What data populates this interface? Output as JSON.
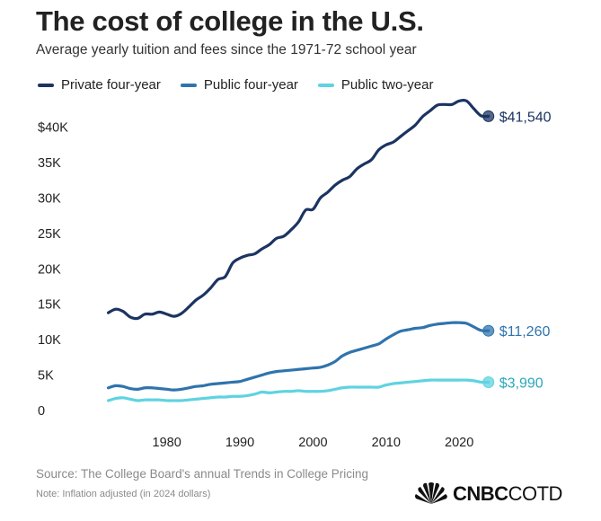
{
  "header": {
    "title": "The cost of college in the U.S.",
    "subtitle": "Average yearly tuition and fees since the 1971-72 school year"
  },
  "footer": {
    "source": "Source: The College Board's annual Trends in College Pricing",
    "note": "Note: Inflation adjusted (in 2024 dollars)",
    "logo_bold": "CNBC",
    "logo_light": "COTD"
  },
  "colors": {
    "private": "#1c3461",
    "public4": "#2f74ad",
    "public2": "#5fd3e0",
    "end_label_public2": "#2aa7b8"
  },
  "chart_data": {
    "type": "line",
    "x_ticks": [
      1980,
      1990,
      2000,
      2010,
      2020
    ],
    "y_ticks": [
      0,
      5000,
      10000,
      15000,
      20000,
      25000,
      30000,
      35000,
      40000
    ],
    "y_tick_labels": [
      "0",
      "5K",
      "10K",
      "15K",
      "20K",
      "25K",
      "30K",
      "35K",
      "$40K"
    ],
    "xlim": [
      1968,
      2026
    ],
    "ylim": [
      0,
      44000
    ],
    "grid": false,
    "legend_position": "top-left",
    "series": [
      {
        "name": "Private four-year",
        "key": "private",
        "end_label": "$41,540",
        "x": [
          1972,
          1973,
          1974,
          1975,
          1976,
          1977,
          1978,
          1979,
          1980,
          1981,
          1982,
          1983,
          1984,
          1985,
          1986,
          1987,
          1988,
          1989,
          1990,
          1991,
          1992,
          1993,
          1994,
          1995,
          1996,
          1997,
          1998,
          1999,
          2000,
          2001,
          2002,
          2003,
          2004,
          2005,
          2006,
          2007,
          2008,
          2009,
          2010,
          2011,
          2012,
          2013,
          2014,
          2015,
          2016,
          2017,
          2018,
          2019,
          2020,
          2021,
          2022,
          2023,
          2024
        ],
        "y": [
          13800,
          14300,
          14000,
          13200,
          13000,
          13600,
          13600,
          13900,
          13600,
          13300,
          13700,
          14600,
          15600,
          16300,
          17300,
          18500,
          18900,
          20800,
          21500,
          21900,
          22100,
          22800,
          23400,
          24300,
          24600,
          25500,
          26600,
          28300,
          28400,
          30000,
          30800,
          31800,
          32500,
          33000,
          34100,
          34800,
          35400,
          36800,
          37500,
          37900,
          38700,
          39500,
          40300,
          41500,
          42300,
          43100,
          43200,
          43200,
          43700,
          43700,
          42600,
          41600,
          41540
        ]
      },
      {
        "name": "Public four-year",
        "key": "public4",
        "end_label": "$11,260",
        "x": [
          1972,
          1973,
          1974,
          1975,
          1976,
          1977,
          1978,
          1979,
          1980,
          1981,
          1982,
          1983,
          1984,
          1985,
          1986,
          1987,
          1988,
          1989,
          1990,
          1991,
          1992,
          1993,
          1994,
          1995,
          1996,
          1997,
          1998,
          1999,
          2000,
          2001,
          2002,
          2003,
          2004,
          2005,
          2006,
          2007,
          2008,
          2009,
          2010,
          2011,
          2012,
          2013,
          2014,
          2015,
          2016,
          2017,
          2018,
          2019,
          2020,
          2021,
          2022,
          2023,
          2024
        ],
        "y": [
          3200,
          3500,
          3400,
          3100,
          3000,
          3200,
          3200,
          3100,
          3000,
          2900,
          3000,
          3200,
          3400,
          3500,
          3700,
          3800,
          3900,
          4000,
          4100,
          4400,
          4700,
          5000,
          5300,
          5500,
          5600,
          5700,
          5800,
          5900,
          6000,
          6100,
          6400,
          6900,
          7700,
          8200,
          8500,
          8800,
          9100,
          9400,
          10100,
          10700,
          11200,
          11400,
          11600,
          11700,
          12000,
          12200,
          12300,
          12400,
          12400,
          12300,
          11800,
          11300,
          11260
        ]
      },
      {
        "name": "Public two-year",
        "key": "public2",
        "end_label": "$3,990",
        "x": [
          1972,
          1973,
          1974,
          1975,
          1976,
          1977,
          1978,
          1979,
          1980,
          1981,
          1982,
          1983,
          1984,
          1985,
          1986,
          1987,
          1988,
          1989,
          1990,
          1991,
          1992,
          1993,
          1994,
          1995,
          1996,
          1997,
          1998,
          1999,
          2000,
          2001,
          2002,
          2003,
          2004,
          2005,
          2006,
          2007,
          2008,
          2009,
          2010,
          2011,
          2012,
          2013,
          2014,
          2015,
          2016,
          2017,
          2018,
          2019,
          2020,
          2021,
          2022,
          2023,
          2024
        ],
        "y": [
          1400,
          1700,
          1800,
          1600,
          1400,
          1500,
          1500,
          1500,
          1400,
          1400,
          1400,
          1500,
          1600,
          1700,
          1800,
          1900,
          1900,
          2000,
          2000,
          2100,
          2300,
          2600,
          2500,
          2600,
          2700,
          2700,
          2800,
          2700,
          2700,
          2700,
          2800,
          3000,
          3200,
          3300,
          3300,
          3300,
          3300,
          3300,
          3600,
          3800,
          3900,
          4000,
          4100,
          4200,
          4300,
          4300,
          4300,
          4300,
          4300,
          4300,
          4200,
          4000,
          3990
        ]
      }
    ]
  }
}
